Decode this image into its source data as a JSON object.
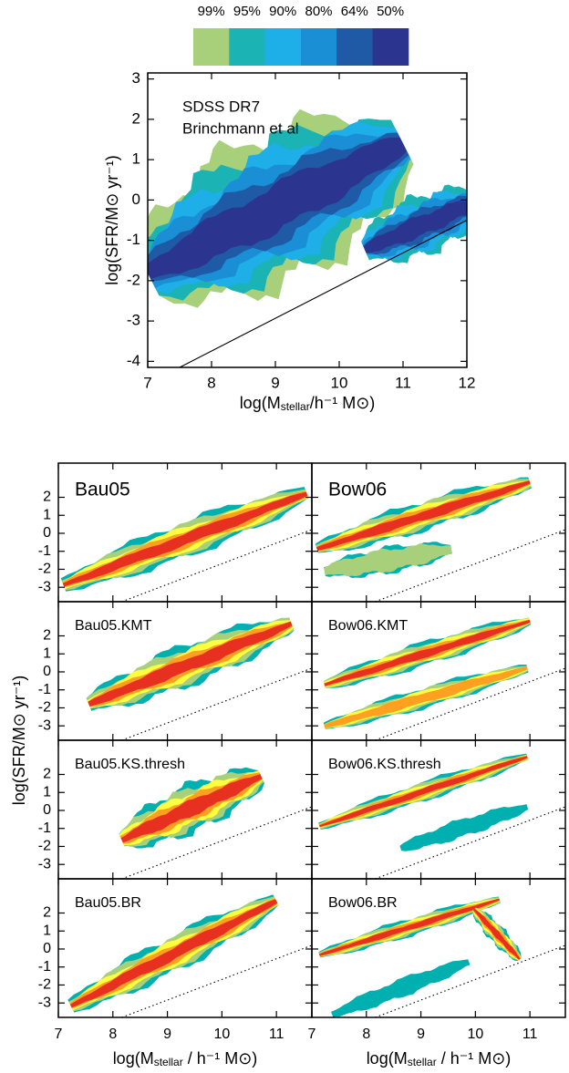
{
  "colorbar": {
    "labels": [
      "99%",
      "95%",
      "90%",
      "80%",
      "64%",
      "50%"
    ],
    "colors": [
      "#a8d07a",
      "#1bb3b3",
      "#1eaee8",
      "#1a8fd6",
      "#1e5aa6",
      "#2b3590"
    ]
  },
  "bottom_colors": [
    "#00b0b0",
    "#a8d07a",
    "#ffff40",
    "#ffa020",
    "#e83020"
  ],
  "y_label": "log(SFR/M⊙ yr⁻¹)",
  "chart_data": [
    {
      "type": "contour",
      "annotations": [
        "SDSS DR7",
        "Brinchmann et al"
      ],
      "x_label": {
        "pre": "log(M",
        "sub": "stellar",
        "post": "/h⁻¹ M⊙)"
      },
      "y_label": "log(SFR/M⊙ yr⁻¹)",
      "xlim": [
        7,
        12
      ],
      "ylim": [
        -4.15,
        3.15
      ],
      "xticks": [
        7,
        8,
        9,
        10,
        11,
        12
      ],
      "yticks": [
        -4,
        -3,
        -2,
        -1,
        0,
        1,
        2,
        3
      ]
    },
    {
      "type": "contour",
      "title": "Bau05",
      "xlim": [
        7,
        11.65
      ],
      "ylim": [
        -3.8,
        3.9
      ],
      "xticks": [
        7,
        8,
        9,
        10,
        11
      ],
      "yticks": [
        -3,
        -2,
        -1,
        0,
        1,
        2
      ]
    },
    {
      "type": "contour",
      "title": "Bow06",
      "xlim": [
        7,
        11.65
      ],
      "ylim": [
        -3.8,
        3.9
      ],
      "xticks": [
        7,
        8,
        9,
        10,
        11
      ],
      "yticks": [
        -3,
        -2,
        -1,
        0,
        1,
        2
      ]
    },
    {
      "type": "contour",
      "title": "Bau05.KMT",
      "xlim": [
        7,
        11.65
      ],
      "ylim": [
        -3.8,
        3.9
      ],
      "xticks": [
        7,
        8,
        9,
        10,
        11
      ],
      "yticks": [
        -3,
        -2,
        -1,
        0,
        1,
        2
      ]
    },
    {
      "type": "contour",
      "title": "Bow06.KMT",
      "xlim": [
        7,
        11.65
      ],
      "ylim": [
        -3.8,
        3.9
      ],
      "xticks": [
        7,
        8,
        9,
        10,
        11
      ],
      "yticks": [
        -3,
        -2,
        -1,
        0,
        1,
        2
      ]
    },
    {
      "type": "contour",
      "title": "Bau05.KS.thresh",
      "xlim": [
        7,
        11.65
      ],
      "ylim": [
        -3.8,
        3.9
      ],
      "xticks": [
        7,
        8,
        9,
        10,
        11
      ],
      "yticks": [
        -3,
        -2,
        -1,
        0,
        1,
        2
      ]
    },
    {
      "type": "contour",
      "title": "Bow06.KS.thresh",
      "xlim": [
        7,
        11.65
      ],
      "ylim": [
        -3.8,
        3.9
      ],
      "xticks": [
        7,
        8,
        9,
        10,
        11
      ],
      "yticks": [
        -3,
        -2,
        -1,
        0,
        1,
        2
      ]
    },
    {
      "type": "contour",
      "title": "Bau05.BR",
      "x_label": {
        "pre": "log(M",
        "sub": "stellar",
        "post": " / h⁻¹ M⊙)"
      },
      "xlim": [
        7,
        11.65
      ],
      "ylim": [
        -3.8,
        3.9
      ],
      "xticks": [
        7,
        8,
        9,
        10,
        11
      ],
      "yticks": [
        -3,
        -2,
        -1,
        0,
        1,
        2
      ]
    },
    {
      "type": "contour",
      "title": "Bow06.BR",
      "x_label": {
        "pre": "log(M",
        "sub": "stellar",
        "post": " / h⁻¹ M⊙)"
      },
      "xlim": [
        7,
        11.65
      ],
      "ylim": [
        -3.8,
        3.9
      ],
      "xticks": [
        7,
        8,
        9,
        10,
        11
      ],
      "yticks": [
        -3,
        -2,
        -1,
        0,
        1,
        2
      ]
    }
  ]
}
